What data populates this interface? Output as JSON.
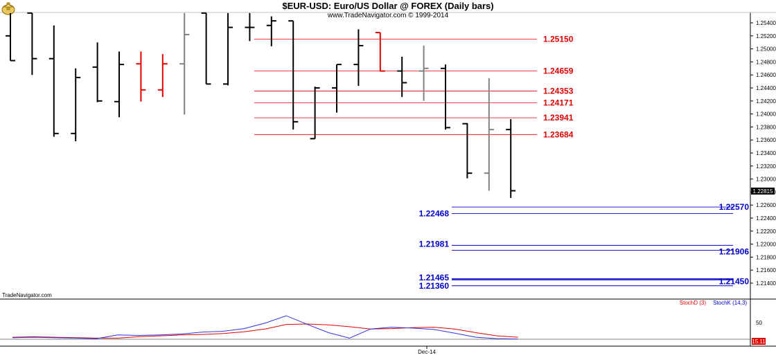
{
  "header": {
    "title": "$EUR-USD:  Euro/US Dollar @ FOREX  (Daily bars)",
    "copyright": "www.TradeNavigator.com © 1999-2014",
    "logo_icon": "trade-navigator-logo-icon"
  },
  "footer": {
    "watermark": "TradeNavigator.com",
    "date_label": "Dec-14"
  },
  "indicator": {
    "stochd_label": "StochD (3)",
    "stochk_label": "StochK (14,3)",
    "level_label": "50",
    "value_label": "15.11"
  },
  "colors": {
    "bull_bar": "#000000",
    "red_bar": "#e00000",
    "gray_bar": "#808080",
    "resistance": "#e00000",
    "support": "#0000cc",
    "stoch_d": "#e00000",
    "stoch_k": "#3030e0"
  },
  "chart_data": [
    {
      "type": "ohlc",
      "title": "$EUR-USD:  Euro/US Dollar @ FOREX  (Daily bars)",
      "ylim": [
        1.2135,
        1.2555
      ],
      "y_ticks": [
        "1.25400",
        "1.25200",
        "1.25000",
        "1.24800",
        "1.24600",
        "1.24400",
        "1.24200",
        "1.24000",
        "1.23800",
        "1.23600",
        "1.23400",
        "1.23200",
        "1.23000",
        "1.22800",
        "1.22600",
        "1.22400",
        "1.22200",
        "1.22000",
        "1.21800",
        "1.21600",
        "1.21400"
      ],
      "last_price": "1.22815",
      "bars": [
        {
          "o": 1.252,
          "h": 1.2555,
          "l": 1.2482,
          "c": 1.2482,
          "color": "black"
        },
        {
          "o": 1.2555,
          "h": 1.2555,
          "l": 1.246,
          "c": 1.2485,
          "color": "black"
        },
        {
          "o": 1.2485,
          "h": 1.2536,
          "l": 1.2365,
          "c": 1.237,
          "color": "black"
        },
        {
          "o": 1.237,
          "h": 1.247,
          "l": 1.2358,
          "c": 1.2456,
          "color": "black"
        },
        {
          "o": 1.2472,
          "h": 1.251,
          "l": 1.2418,
          "c": 1.242,
          "color": "black"
        },
        {
          "o": 1.2419,
          "h": 1.2496,
          "l": 1.2395,
          "c": 1.2476,
          "color": "black"
        },
        {
          "o": 1.2477,
          "h": 1.2496,
          "l": 1.2419,
          "c": 1.2437,
          "color": "red"
        },
        {
          "o": 1.2437,
          "h": 1.2492,
          "l": 1.2426,
          "c": 1.2477,
          "color": "red"
        },
        {
          "o": 1.2477,
          "h": 1.2555,
          "l": 1.2399,
          "c": 1.2522,
          "color": "gray"
        },
        {
          "o": 1.2555,
          "h": 1.2555,
          "l": 1.2446,
          "c": 1.2446,
          "color": "black"
        },
        {
          "o": 1.2446,
          "h": 1.2555,
          "l": 1.2444,
          "c": 1.2533,
          "color": "black"
        },
        {
          "o": 1.2533,
          "h": 1.2555,
          "l": 1.2512,
          "c": 1.2533,
          "color": "black"
        },
        {
          "o": 1.2536,
          "h": 1.255,
          "l": 1.2504,
          "c": 1.2543,
          "color": "black"
        },
        {
          "o": 1.2543,
          "h": 1.2543,
          "l": 1.2376,
          "c": 1.2388,
          "color": "black"
        },
        {
          "o": 1.2362,
          "h": 1.2442,
          "l": 1.2362,
          "c": 1.244,
          "color": "black"
        },
        {
          "o": 1.244,
          "h": 1.2476,
          "l": 1.2402,
          "c": 1.2476,
          "color": "black"
        },
        {
          "o": 1.2476,
          "h": 1.253,
          "l": 1.2443,
          "c": 1.2505,
          "color": "black"
        },
        {
          "o": 1.2525,
          "h": 1.2525,
          "l": 1.2465,
          "c": 1.2466,
          "color": "red"
        },
        {
          "o": 1.2466,
          "h": 1.2488,
          "l": 1.2426,
          "c": 1.2448,
          "color": "black"
        },
        {
          "o": 1.2466,
          "h": 1.2505,
          "l": 1.242,
          "c": 1.247,
          "color": "gray"
        },
        {
          "o": 1.247,
          "h": 1.2476,
          "l": 1.2376,
          "c": 1.2379,
          "color": "black"
        },
        {
          "o": 1.2385,
          "h": 1.2386,
          "l": 1.2301,
          "c": 1.2309,
          "color": "black"
        },
        {
          "o": 1.2309,
          "h": 1.2455,
          "l": 1.2282,
          "c": 1.2376,
          "color": "gray"
        },
        {
          "o": 1.2376,
          "h": 1.2392,
          "l": 1.2271,
          "c": 1.2282,
          "color": "black"
        }
      ],
      "resistance_levels": [
        {
          "value": 1.2515,
          "label": "1.25150"
        },
        {
          "value": 1.24659,
          "label": "1.24659"
        },
        {
          "value": 1.24353,
          "label": "1.24353"
        },
        {
          "value": 1.24171,
          "label": "1.24171"
        },
        {
          "value": 1.23941,
          "label": "1.23941"
        },
        {
          "value": 1.23684,
          "label": "1.23684"
        }
      ],
      "support_levels": [
        {
          "value": 1.2257,
          "label": "1.22570"
        },
        {
          "value": 1.22468,
          "label": "1.22468"
        },
        {
          "value": 1.21981,
          "label": "1.21981"
        },
        {
          "value": 1.21906,
          "label": "1.21906"
        },
        {
          "value": 1.21465,
          "label": "1.21465"
        },
        {
          "value": 1.2145,
          "label": "1.21450"
        },
        {
          "value": 1.2136,
          "label": "1.21360"
        }
      ]
    },
    {
      "type": "line",
      "ylim": [
        0,
        100
      ],
      "x_label": "Dec-14",
      "series": [
        {
          "name": "StochD (3)",
          "values": [
            15,
            16,
            15,
            14,
            13,
            13,
            16,
            18,
            20,
            21,
            23,
            27,
            33,
            43,
            44,
            42,
            38,
            33,
            34,
            36,
            37,
            33,
            25,
            18,
            15
          ]
        },
        {
          "name": "StochK (14,3)",
          "values": [
            14,
            15,
            14,
            13,
            12,
            20,
            19,
            20,
            22,
            26,
            28,
            34,
            46,
            62,
            43,
            25,
            13,
            33,
            37,
            35,
            32,
            24,
            15,
            12,
            11
          ]
        }
      ]
    }
  ]
}
